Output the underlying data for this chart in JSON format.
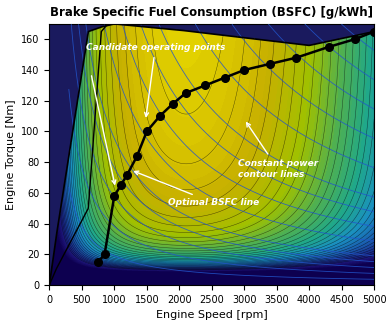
{
  "title": "Brake Specific Fuel Consumption (BSFC) [g/kWh]",
  "xlabel": "Engine Speed [rpm]",
  "ylabel": "Engine Torque [Nm]",
  "xlim": [
    0,
    5000
  ],
  "ylim": [
    0,
    170
  ],
  "xticks": [
    0,
    500,
    1000,
    1500,
    2000,
    2500,
    3000,
    3500,
    4000,
    4500,
    5000
  ],
  "yticks": [
    0,
    20,
    40,
    60,
    80,
    100,
    120,
    140,
    160
  ],
  "optimal_bsfc_speed": [
    750,
    850,
    1000,
    1100,
    1200,
    1350,
    1500,
    1700,
    1900,
    2100,
    2400,
    2700,
    3000,
    3400,
    3800,
    4300,
    4700,
    5000
  ],
  "optimal_bsfc_torque": [
    15,
    20,
    58,
    65,
    72,
    84,
    100,
    110,
    118,
    125,
    130,
    135,
    140,
    144,
    148,
    155,
    160,
    165
  ],
  "bg_color": "#1a1a5e",
  "colormap_colors": [
    "#1a005e",
    "#1e2090",
    "#1a4ab5",
    "#1a80c8",
    "#1ab5c8",
    "#1ab5a0",
    "#1ab550",
    "#78b500",
    "#c8b500",
    "#f0d000",
    "#f5e800"
  ],
  "power_line_color": "#2255cc",
  "envelope_speeds": [
    0,
    100,
    600,
    800,
    1000,
    2000,
    3000,
    4000,
    5000
  ],
  "envelope_torques": [
    0,
    30,
    165,
    168,
    170,
    166,
    161,
    156,
    165
  ],
  "annotation_fontsize": 6.5
}
